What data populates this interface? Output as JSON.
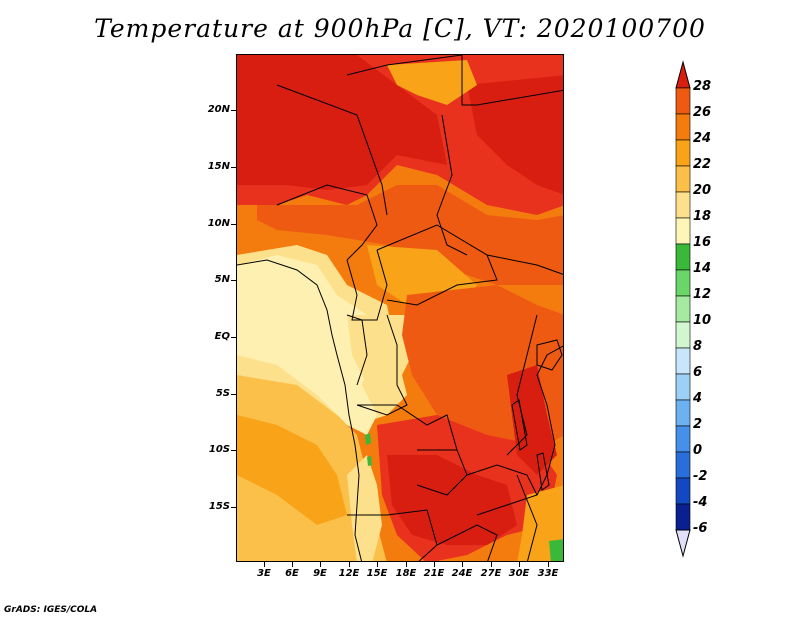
{
  "title": "Temperature at 900hPa [C], VT: 2020100700",
  "credit": "GrADS: IGES/COLA",
  "axes": {
    "y_ticks": [
      "20N",
      "15N",
      "10N",
      "5N",
      "EQ",
      "5S",
      "10S",
      "15S"
    ],
    "x_ticks": [
      "3E",
      "6E",
      "9E",
      "12E",
      "15E",
      "18E",
      "21E",
      "24E",
      "27E",
      "30E",
      "33E"
    ]
  },
  "colorbar": {
    "levels": [
      "28",
      "26",
      "24",
      "22",
      "20",
      "18",
      "16",
      "14",
      "12",
      "10",
      "8",
      "6",
      "4",
      "2",
      "0",
      "-2",
      "-4",
      "-6"
    ],
    "colors": [
      "#e8321e",
      "#ee5a12",
      "#f47c0e",
      "#f8a318",
      "#fbc04a",
      "#fde08c",
      "#fef5b8",
      "#3ab83a",
      "#6ad66a",
      "#a4eaa0",
      "#d2f6d0",
      "#c8e6fa",
      "#9cd0f6",
      "#6cb2f0",
      "#4690ea",
      "#2a6edc",
      "#1448c0",
      "#0a2090",
      "#040c60"
    ],
    "top_arrow_color": "#d81e10",
    "bottom_arrow_color": "#e0e0f8"
  },
  "map": {
    "colors": {
      "deep_red": "#d81e10",
      "red": "#e8321e",
      "red_orange": "#ee5a12",
      "orange": "#f47c0e",
      "light_orange": "#f8a318",
      "yellow_orange": "#fbc04a",
      "pale_yellow": "#fde08c",
      "light_yellow": "#fef0b0",
      "green": "#3ab83a"
    }
  }
}
